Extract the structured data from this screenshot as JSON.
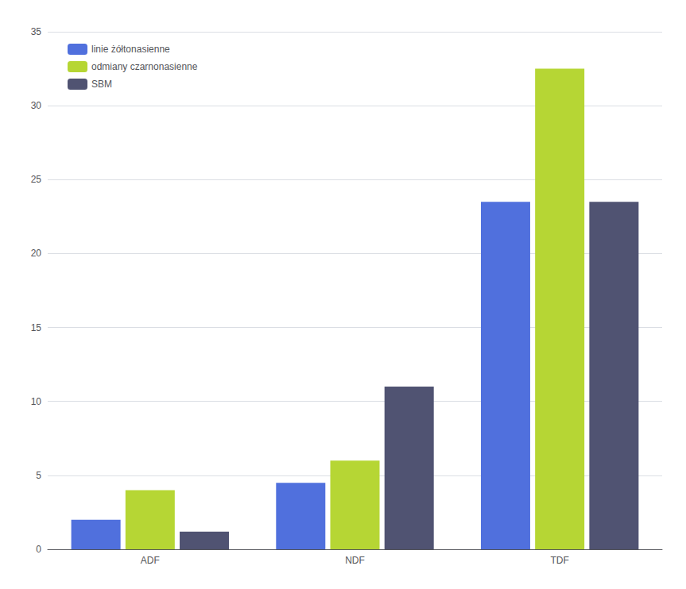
{
  "chart_data": {
    "type": "bar",
    "categories": [
      "ADF",
      "NDF",
      "TDF"
    ],
    "series": [
      {
        "name": "linie żółtonasienne",
        "values": [
          2.0,
          4.5,
          23.5
        ]
      },
      {
        "name": "odmiany czarnonasienne",
        "values": [
          4.0,
          6.0,
          32.5
        ]
      },
      {
        "name": "SBM",
        "values": [
          1.2,
          11.0,
          23.5
        ]
      }
    ],
    "ylim": [
      0,
      35
    ],
    "yticks": [
      0,
      5,
      10,
      15,
      20,
      25,
      30,
      35
    ],
    "grid": true,
    "legend": "upper left"
  }
}
